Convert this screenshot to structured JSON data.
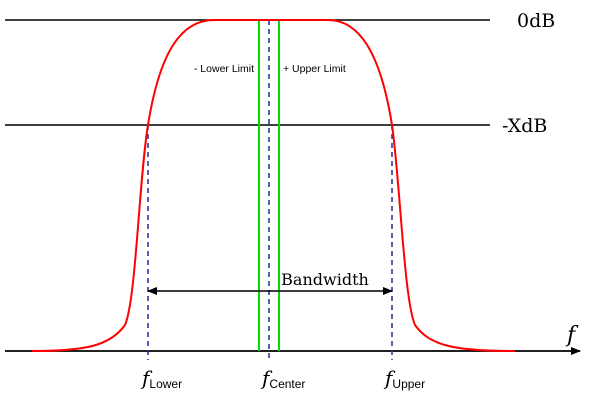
{
  "diagram": {
    "levels": {
      "top_label": "0dB",
      "cutoff_label": "-XdB"
    },
    "axis": {
      "label": "f"
    },
    "limits": {
      "lower_limit_label": "- Lower Limit",
      "upper_limit_label": "+ Upper Limit"
    },
    "bandwidth": {
      "label": "Bandwidth"
    },
    "frequencies": {
      "lower": {
        "symbol": "f",
        "subscript": "Lower"
      },
      "center": {
        "symbol": "f",
        "subscript": "Center"
      },
      "upper": {
        "symbol": "f",
        "subscript": "Upper"
      }
    },
    "colors": {
      "response_curve": "#ff0000",
      "limit_lines": "#00dd00",
      "dashed_markers": "#1f2f8f",
      "lines": "#000000"
    }
  }
}
